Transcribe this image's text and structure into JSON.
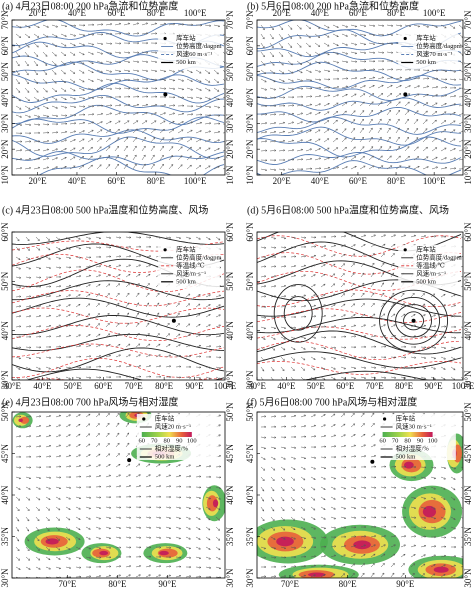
{
  "panels": [
    {
      "title": "(a) 4月23日08:00 200 hPa急流和位势高度",
      "x_labels": [
        "20°E",
        "40°E",
        "60°E",
        "80°E",
        "100°E"
      ],
      "y_labels": [
        "70°N",
        "60°N",
        "50°N",
        "40°N",
        "30°N",
        "20°N",
        "10°N"
      ],
      "legend": [
        "库车站",
        "位势高度/dagpm",
        "风速60 m·s⁻¹",
        "500 km"
      ]
    },
    {
      "title": "(b) 5月6日08:00 200 hPa急流和位势高度",
      "x_labels": [
        "20°E",
        "40°E",
        "60°E",
        "80°E",
        "100°E"
      ],
      "y_labels": [
        "70°N",
        "60°N",
        "50°N",
        "40°N",
        "30°N",
        "20°N",
        "10°N"
      ],
      "legend": [
        "库车站",
        "位势高度/dagpm",
        "风速70 m·s⁻¹",
        "500 km"
      ]
    },
    {
      "title": "(c) 4月23日08:00 500 hPa温度和位势高度、风场",
      "x_labels": [
        "30°E",
        "40°E",
        "50°E",
        "60°E",
        "70°E",
        "80°E",
        "90°E",
        "100°E"
      ],
      "y_labels": [
        "60°N",
        "50°N",
        "40°N",
        "30°N"
      ],
      "legend": [
        "库车站",
        "位势高度/dagpm",
        "等温线/℃",
        "风速/m·s⁻¹",
        "500 km"
      ]
    },
    {
      "title": "(d) 5月6日08:00 500 hPa温度和位势高度、风场",
      "x_labels": [
        "30°E",
        "40°E",
        "50°E",
        "60°E",
        "70°E",
        "80°E",
        "90°E",
        "100°E"
      ],
      "y_labels": [
        "60°N",
        "50°N",
        "40°N",
        "30°N"
      ],
      "legend": [
        "库车站",
        "位势高度/dagpm",
        "等温线/℃",
        "风速/m·s⁻¹",
        "500 km"
      ]
    },
    {
      "title": "(e) 4月23日08:00 700 hPa风场与相对湿度",
      "x_labels": [
        "70°E",
        "80°E",
        "90°E"
      ],
      "y_labels": [
        "50°N",
        "45°N",
        "40°N",
        "35°N",
        "30°N"
      ],
      "legend": [
        "库车站",
        "风速20 m·s⁻¹",
        "相对湿度/%",
        "500 km"
      ],
      "colorbar": [
        "60",
        "70",
        "80",
        "90",
        "100"
      ]
    },
    {
      "title": "(f) 5月6日08:00 700 hPa风场与相对湿度",
      "x_labels": [
        "70°E",
        "80°E",
        "90°E"
      ],
      "y_labels": [
        "50°N",
        "45°N",
        "40°N",
        "35°N",
        "30°N"
      ],
      "legend": [
        "库车站",
        "风速30 m·s⁻¹",
        "相对湿度/%",
        "500 km"
      ],
      "colorbar": [
        "60",
        "70",
        "80",
        "90",
        "100"
      ]
    }
  ]
}
